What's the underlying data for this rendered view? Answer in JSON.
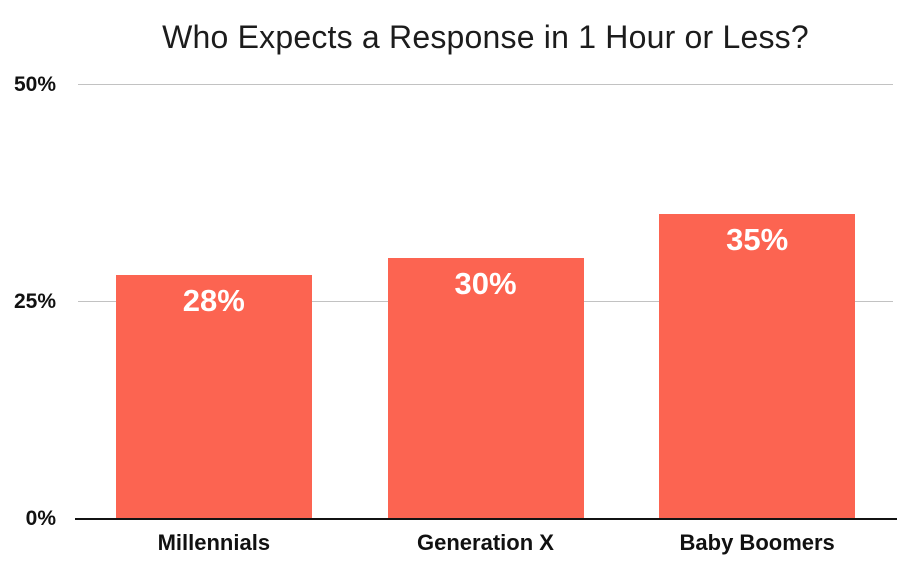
{
  "page": {
    "background": "#FFFFFF"
  },
  "chart_data": {
    "type": "bar",
    "title": "Who Expects a Response in 1 Hour or Less?",
    "categories": [
      "Millennials",
      "Generation X",
      "Baby Boomers"
    ],
    "values": [
      28,
      30,
      35
    ],
    "value_labels": [
      "28%",
      "30%",
      "35%"
    ],
    "xlabel": "",
    "ylabel": "",
    "ylim": [
      0,
      50
    ],
    "yticks": [
      {
        "value": 0,
        "label": "0%"
      },
      {
        "value": 25,
        "label": "25%"
      },
      {
        "value": 50,
        "label": "50%"
      }
    ],
    "grid": "horizontal",
    "legend": "none",
    "colors": {
      "bar": "#FC6451",
      "value_label": "#FFFFFF",
      "gridline": "#C2C2C2",
      "axis_line": "#131313",
      "tick_text": "#111111",
      "category_text": "#111111",
      "title_text": "#1C1C1C"
    }
  }
}
